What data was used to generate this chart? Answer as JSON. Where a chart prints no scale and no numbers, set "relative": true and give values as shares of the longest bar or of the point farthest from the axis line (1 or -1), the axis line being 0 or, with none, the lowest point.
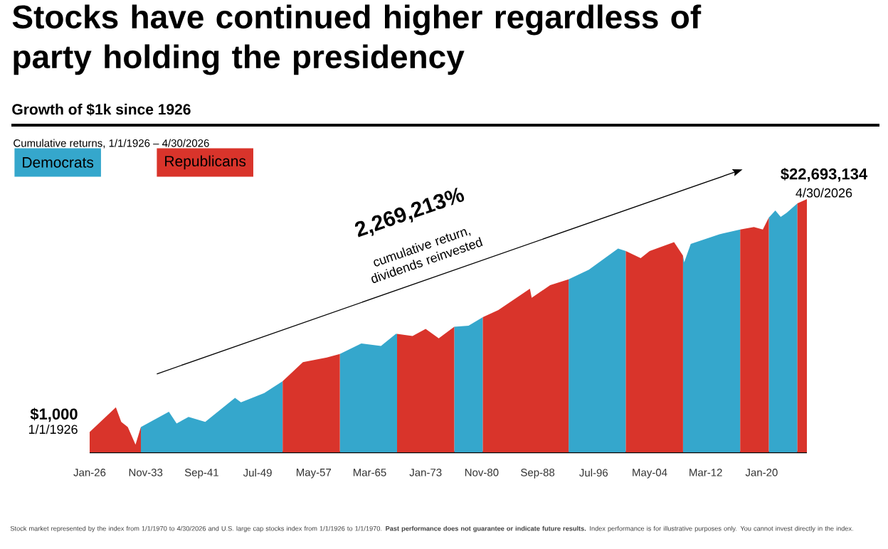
{
  "chart_data": {
    "type": "area",
    "title": "Stocks have continued higher regardless of party holding the presidency",
    "subtitle": "Growth of $1k since 1926",
    "relative": true,
    "legend": "top left",
    "xlim": [
      "1926-01",
      "2026-04-30"
    ],
    "xticks": [
      {
        "value": "1926-01",
        "label": "Jan-26"
      },
      {
        "value": "1933-11",
        "label": "Nov-33"
      },
      {
        "value": "1941-09",
        "label": "Sep-41"
      },
      {
        "value": "1949-07",
        "label": "Jul-49"
      },
      {
        "value": "1957-05",
        "label": "May-57"
      },
      {
        "value": "1965-03",
        "label": "Mar-65"
      },
      {
        "value": "1973-01",
        "label": "Jan-73"
      },
      {
        "value": "1980-11",
        "label": "Nov-80"
      },
      {
        "value": "1988-09",
        "label": "Sep-88"
      },
      {
        "value": "1996-07",
        "label": "Jul-96"
      },
      {
        "value": "2004-05",
        "label": "May-04"
      },
      {
        "value": "2012-03",
        "label": "Mar-12"
      },
      {
        "value": "2020-01",
        "label": "Jan-20"
      }
    ],
    "series": [
      {
        "name": "Democrats",
        "color": "#35a7cc",
        "x": [
          "1933-03",
          "1937-02",
          "1938-03",
          "1939-11",
          "1942-03",
          "1946-05",
          "1947-03",
          "1950-06",
          "1953-01",
          "1957-01",
          "1961-01",
          "1964-01",
          "1966-10",
          "1968-11",
          "1969-01",
          "1973-01",
          "1977-01",
          "1979-01",
          "1981-01",
          "1987-01",
          "1993-01",
          "1995-11",
          "1999-12",
          "2001-01",
          "2005-01",
          "2009-01",
          "2009-03",
          "2010-02",
          "2014-02",
          "2017-01",
          "2019-01",
          "2021-01",
          "2021-12",
          "2022-09",
          "2023-07",
          "2025-01"
        ],
        "values": [
          0.1,
          0.16,
          0.114,
          0.14,
          0.12,
          0.215,
          0.197,
          0.234,
          0.281,
          null,
          0.388,
          0.43,
          0.42,
          0.468,
          0.468,
          null,
          0.496,
          0.5,
          0.534,
          null,
          0.683,
          0.721,
          0.805,
          0.795,
          null,
          0.777,
          0.75,
          0.823,
          0.861,
          0.88,
          null,
          0.927,
          0.955,
          0.93,
          0.946,
          0.983
        ]
      },
      {
        "name": "Republicans",
        "color": "#d9342b",
        "x": [
          "1926-01",
          "1929-09",
          "1930-06",
          "1931-05",
          "1932-06",
          "1933-03",
          "1943-01",
          "1953-01",
          "1955-11",
          "1959-03",
          "1961-01",
          "1965-01",
          "1969-01",
          "1971-03",
          "1973-01",
          "1974-11",
          "1977-01",
          "1979-01",
          "1981-01",
          "1983-03",
          "1987-08",
          "1987-11",
          "1990-06",
          "1993-01",
          "1997-01",
          "2001-01",
          "2003-02",
          "2004-05",
          "2007-10",
          "2009-01",
          "2013-01",
          "2017-01",
          "2018-12",
          "2020-03",
          "2021-01",
          "2023-01",
          "2025-01",
          "2026-04-30"
        ],
        "values": [
          0.08,
          0.178,
          0.12,
          0.1,
          0.03,
          0.1,
          null,
          0.281,
          0.356,
          0.374,
          0.388,
          null,
          0.468,
          0.459,
          0.487,
          0.45,
          0.496,
          null,
          0.534,
          0.562,
          0.646,
          0.61,
          0.66,
          0.683,
          null,
          0.795,
          0.767,
          0.795,
          0.83,
          0.777,
          null,
          0.88,
          0.89,
          0.88,
          0.927,
          null,
          0.983,
          1
        ]
      }
    ],
    "annotations": [
      "Cumulative returns, 1/1/1926 – 4/30/2026",
      {
        "text": "$1,000",
        "x": "1926-01",
        "y": 0.08
      },
      {
        "text": "1/1/1926",
        "x": "1926-01",
        "y": 0.08
      },
      {
        "text": "$22,693,134",
        "x": "2026-04-30",
        "y": 1
      },
      {
        "text": "4/30/2026",
        "x": "2026-04-30",
        "y": 1
      },
      "2,269,213%",
      "cumulative return, dividends reinvested",
      "Stock market represented by the index from 1/1/1970 to 4/30/2026 and U.S. large cap stocks index from 1/1/1926 to 1/1/1970. **Past performance does not guarantee or indicate future results.** Index performance is for illustrative purposes only. You cannot invest directly in the index."
    ]
  }
}
